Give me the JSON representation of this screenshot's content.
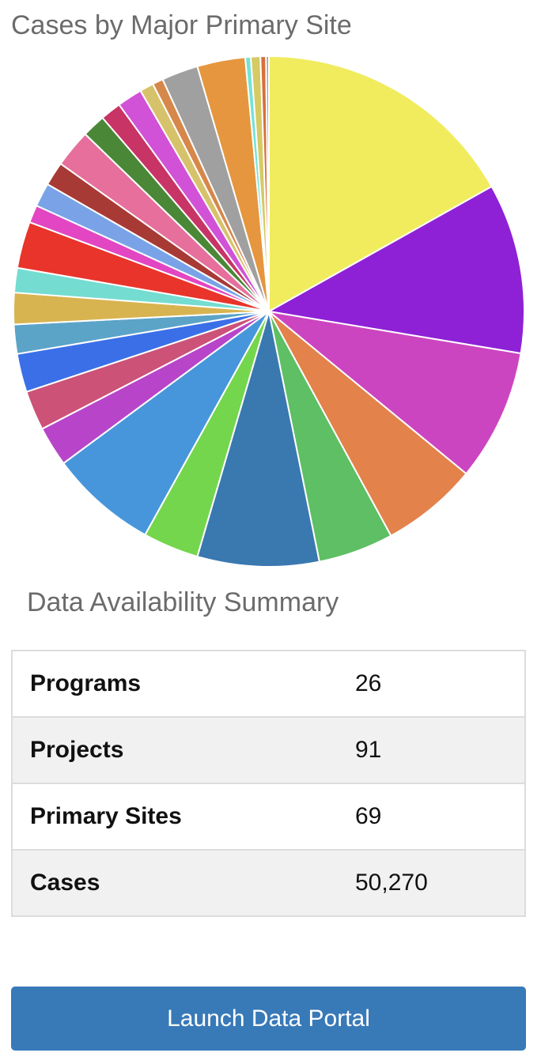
{
  "chart_title": "Cases by Major Primary Site",
  "chart_data": {
    "type": "pie",
    "title": "Cases by Major Primary Site",
    "slices": [
      {
        "value": 9.21,
        "color": "#f0ec5e"
      },
      {
        "value": 5.88,
        "color": "#8e21d6"
      },
      {
        "value": 4.55,
        "color": "#cc45c0"
      },
      {
        "value": 3.34,
        "color": "#e3824b"
      },
      {
        "value": 2.6,
        "color": "#5ebf64"
      },
      {
        "value": 4.2,
        "color": "#3a78b0"
      },
      {
        "value": 1.93,
        "color": "#74d64d"
      },
      {
        "value": 3.72,
        "color": "#4796db"
      },
      {
        "value": 1.38,
        "color": "#b845c9"
      },
      {
        "value": 1.37,
        "color": "#cc5277"
      },
      {
        "value": 1.33,
        "color": "#3b6fe8"
      },
      {
        "value": 1.01,
        "color": "#5ba4c7"
      },
      {
        "value": 1.09,
        "color": "#d8b450"
      },
      {
        "value": 0.85,
        "color": "#74dcd0"
      },
      {
        "value": 1.61,
        "color": "#e8342a"
      },
      {
        "value": 0.61,
        "color": "#e346c2"
      },
      {
        "value": 0.82,
        "color": "#79a3e6"
      },
      {
        "value": 0.83,
        "color": "#a83a36"
      },
      {
        "value": 1.31,
        "color": "#e66f9c"
      },
      {
        "value": 0.81,
        "color": "#4a8736"
      },
      {
        "value": 0.72,
        "color": "#c73465"
      },
      {
        "value": 0.87,
        "color": "#d152d6"
      },
      {
        "value": 0.48,
        "color": "#d7c26c"
      },
      {
        "value": 0.37,
        "color": "#d6874a"
      },
      {
        "value": 1.26,
        "color": "#a0a0a0"
      },
      {
        "value": 1.66,
        "color": "#e5963e"
      },
      {
        "value": 0.19,
        "color": "#74e3d4"
      },
      {
        "value": 0.33,
        "color": "#d6ca65"
      },
      {
        "value": 0.19,
        "color": "#d7703d"
      },
      {
        "value": 0.1,
        "color": "#a0a0a0"
      }
    ]
  },
  "summary_title": "Data Availability Summary",
  "summary": {
    "rows": [
      {
        "label": "Programs",
        "value": "26"
      },
      {
        "label": "Projects",
        "value": "91"
      },
      {
        "label": "Primary Sites",
        "value": "69"
      },
      {
        "label": "Cases",
        "value": "50,270"
      }
    ]
  },
  "launch_button_label": "Launch Data Portal",
  "colors": {
    "button_bg": "#3879b8",
    "button_text": "#ffffff",
    "title_text": "#6b6b6b"
  }
}
